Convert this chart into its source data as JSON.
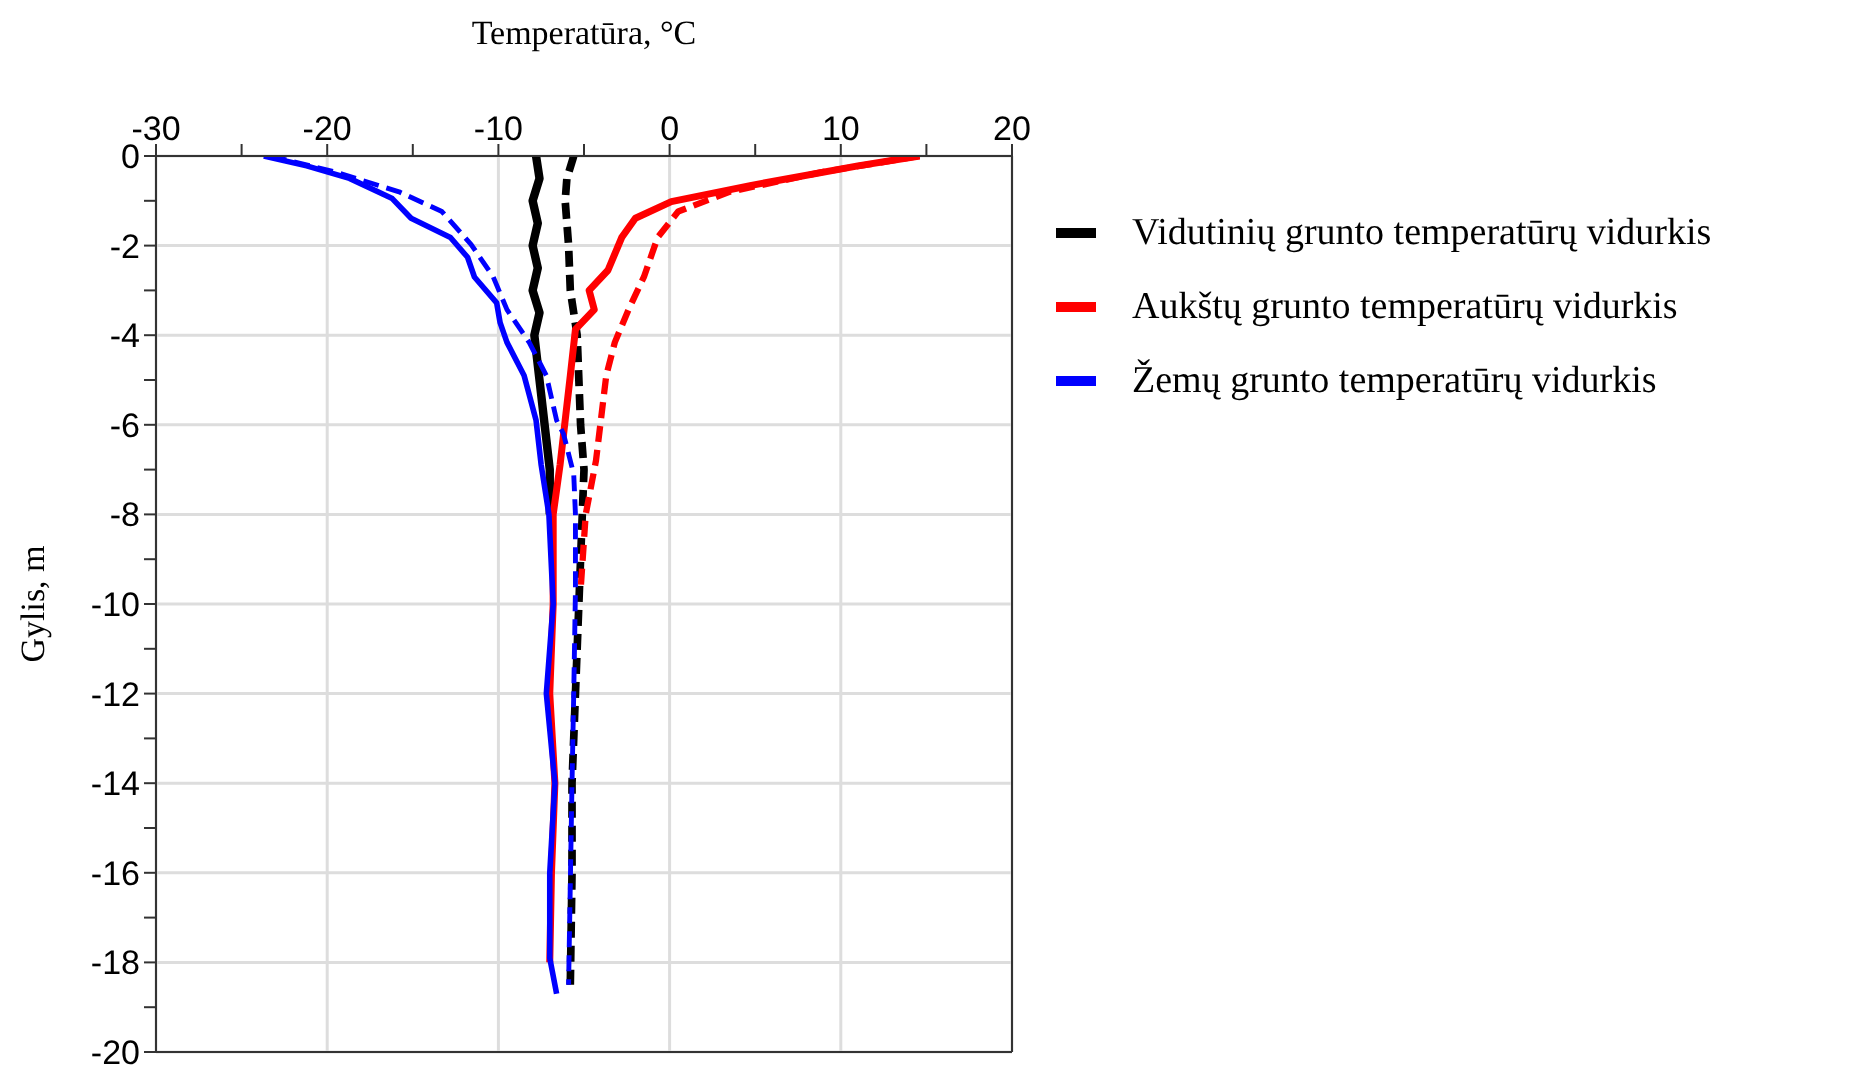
{
  "chart_data": {
    "type": "line",
    "xlabel": "Temperatūra, °C",
    "ylabel": "Gylis, m",
    "xlim": [
      -30,
      20
    ],
    "xticks": [
      -30,
      {
        "value": -25,
        "label": null
      },
      -20,
      {
        "value": -15,
        "label": null
      },
      -10,
      {
        "value": -5,
        "label": null
      },
      0,
      {
        "value": 5,
        "label": null
      },
      10,
      {
        "value": 15,
        "label": null
      },
      20
    ],
    "ylim": [
      -20,
      0
    ],
    "yticks": [
      0,
      {
        "value": -1,
        "label": null
      },
      -2,
      {
        "value": -3,
        "label": null
      },
      -4,
      {
        "value": -5,
        "label": null
      },
      -6,
      {
        "value": -7,
        "label": null
      },
      -8,
      {
        "value": -9,
        "label": null
      },
      -10,
      {
        "value": -11,
        "label": null
      },
      -12,
      {
        "value": -13,
        "label": null
      },
      -14,
      {
        "value": -15,
        "label": null
      },
      -16,
      {
        "value": -17,
        "label": null
      },
      -18,
      {
        "value": -19,
        "label": null
      },
      -20
    ],
    "grid": true,
    "legend": "right",
    "marker": "none",
    "series": [
      {
        "name": "Vidutinių grunto temperatūrų vidurkis",
        "color": "#000000",
        "line_style": "solid",
        "x": [
          -7.8,
          -7.6,
          -8.0,
          -7.7,
          -8.0,
          -7.7,
          -8.0,
          -7.6,
          -7.9,
          -7.6,
          -7.3,
          -7.0,
          -7.0
        ],
        "values": [
          0,
          -0.5,
          -1,
          -1.5,
          -2,
          -2.5,
          -3,
          -3.5,
          -4,
          -5,
          -6,
          -7,
          -8
        ]
      },
      {
        "color": "#000000",
        "line_style": "dashed",
        "x": [
          -5.6,
          -6.0,
          -6.1,
          -5.9,
          -5.8,
          -5.4,
          -5.3,
          -5.2,
          -5.0,
          -5.1,
          -5.3,
          -5.5,
          -5.7,
          -5.7,
          -5.8
        ],
        "values": [
          0,
          -0.5,
          -1,
          -2,
          -3,
          -4,
          -5,
          -6,
          -7,
          -8,
          -10,
          -12,
          -14,
          -16,
          -18.5
        ]
      },
      {
        "name": "Aukštų grunto temperatūrų vidurkis",
        "color": "#ff0000",
        "line_style": "solid",
        "x": [
          14.6,
          11,
          4.7,
          0.1,
          -2.0,
          -2.8,
          -3.6,
          -4.7,
          -4.4,
          -5.5,
          -5.8,
          -6.4,
          -6.8,
          -6.8,
          -7.0,
          -6.7,
          -6.9,
          -7.0
        ],
        "values": [
          0,
          -0.22,
          -0.66,
          -1.02,
          -1.39,
          -1.82,
          -2.55,
          -3,
          -3.43,
          -3.87,
          -4.9,
          -6.9,
          -8,
          -10,
          -12,
          -14,
          -16,
          -18
        ]
      },
      {
        "color": "#ff0000",
        "line_style": "dashed",
        "x": [
          14.6,
          8.9,
          3.5,
          0.5,
          -0.7,
          -1.5,
          -2.4,
          -3.2,
          -3.7,
          -4.3,
          -4.9,
          -5.2
        ],
        "values": [
          0,
          -0.36,
          -0.8,
          -1.24,
          -1.82,
          -2.7,
          -3.43,
          -4.16,
          -4.9,
          -6.8,
          -8,
          -9.7
        ]
      },
      {
        "name": "Žemų grunto temperatūrų vidurkis",
        "color": "#0000ff",
        "line_style": "solid",
        "x": [
          -23.7,
          -21.2,
          -18.7,
          -16.2,
          -15.1,
          -12.8,
          -11.8,
          -11.4,
          -10.1,
          -9.9,
          -9.5,
          -8.5,
          -7.8,
          -7.5,
          -7.05,
          -6.8,
          -7.2,
          -6.7,
          -7.0,
          -7.0,
          -6.6
        ],
        "values": [
          0,
          -0.22,
          -0.5,
          -0.95,
          -1.39,
          -1.82,
          -2.26,
          -2.7,
          -3.28,
          -3.72,
          -4.16,
          -4.9,
          -5.9,
          -6.9,
          -8,
          -10,
          -12,
          -14,
          -16,
          -17.9,
          -18.7
        ]
      },
      {
        "color": "#0000ff",
        "line_style": "dashed",
        "x": [
          -23.3,
          -19.5,
          -15.8,
          -13.3,
          -11.6,
          -10.3,
          -9.5,
          -8.2,
          -7.2,
          -6.6,
          -6.2,
          -5.6,
          -5.5,
          -5.5,
          -5.6,
          -5.7,
          -5.9
        ],
        "values": [
          0,
          -0.36,
          -0.8,
          -1.24,
          -1.97,
          -2.7,
          -3.43,
          -4.16,
          -4.9,
          -5.9,
          -6.2,
          -7.1,
          -8,
          -9.7,
          -12,
          -14,
          -18.5
        ]
      }
    ]
  }
}
